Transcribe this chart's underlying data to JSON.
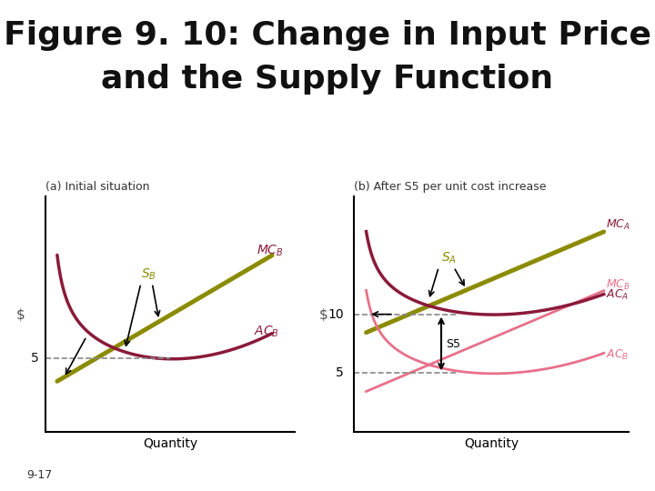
{
  "title_line1": "Figure 9. 10: Change in Input Price",
  "title_line2": "and the Supply Function",
  "title_fontsize": 26,
  "background_color": "#ffffff",
  "panel_a_label": "(a) Initial situation",
  "panel_b_label": "(b) After S5 per unit cost increase",
  "xlabel": "Quantity",
  "ylabel": "$",
  "olive_color": "#8B8B00",
  "dark_red_color": "#8B1A3A",
  "pink_color": "#E8708A",
  "dashed_color": "#888888",
  "footer": "9-17"
}
